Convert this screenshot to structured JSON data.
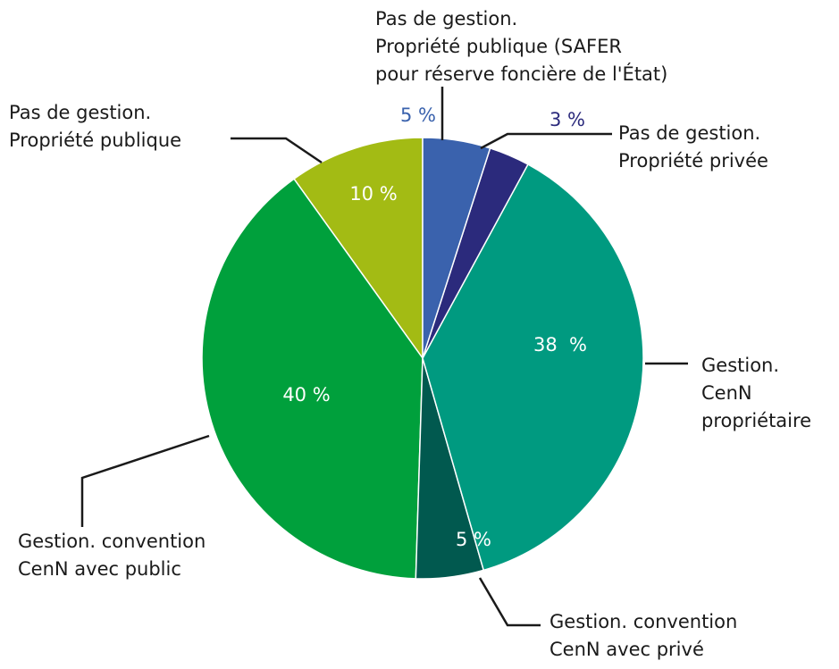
{
  "chart_data": {
    "type": "pie",
    "categories": [
      [
        "Pas de gestion.",
        "Propriété publique (SAFER",
        "pour réserve foncière de l'État)"
      ],
      [
        "Pas de gestion.",
        "Propriété privée"
      ],
      [
        "Gestion.",
        "CenN",
        "propriétaire"
      ],
      [
        "Gestion. convention",
        "CenN avec privé"
      ],
      [
        "Gestion. convention",
        "CenN avec public"
      ],
      [
        "Pas de gestion.",
        "Propriété publique"
      ]
    ],
    "values": [
      5,
      3,
      38,
      5,
      40,
      10
    ],
    "value_labels": [
      "5 %",
      "3 %",
      "38  %",
      "5 %",
      "40 %",
      "10 %"
    ],
    "colors": [
      "#3a62ad",
      "#2b2a7c",
      "#009a80",
      "#01594f",
      "#00a03c",
      "#a3bb14"
    ]
  }
}
